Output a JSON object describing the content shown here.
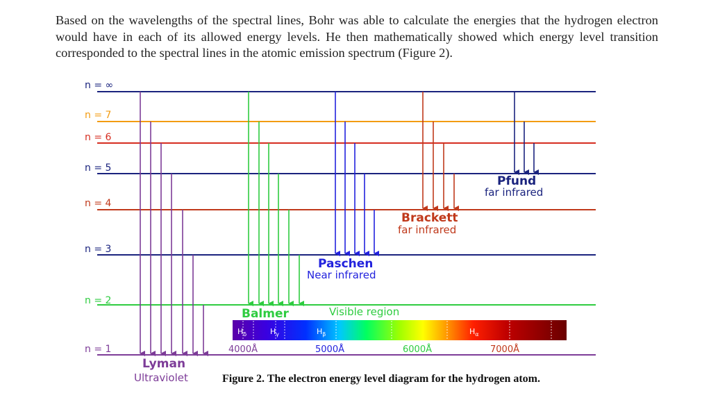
{
  "paragraph": "Based on the wavelengths of the spectral lines, Bohr was able to calculate the energies that the hydrogen electron would have in each of its allowed energy levels. He then mathematically showed which energy level transition corresponded to the spectral lines in the atomic emission spectrum (Figure 2).",
  "caption": "Figure 2. The electron energy level diagram for the hydrogen atom.",
  "levels": [
    {
      "label": "n = ∞",
      "color": "#1a237e"
    },
    {
      "label": "n = 7",
      "color": "#f39c12"
    },
    {
      "label": "n = 6",
      "color": "#d62d20"
    },
    {
      "label": "n = 5",
      "color": "#1a237e"
    },
    {
      "label": "n = 4",
      "color": "#c0391b"
    },
    {
      "label": "n = 3",
      "color": "#1a237e"
    },
    {
      "label": "n = 2",
      "color": "#2ecc40"
    },
    {
      "label": "n = 1",
      "color": "#7d3c98"
    }
  ],
  "series": [
    {
      "name": "Lyman",
      "sub": "Ultraviolet",
      "color": "#7d3c98"
    },
    {
      "name": "Balmer",
      "sub": "Visible region",
      "color": "#2ecc40"
    },
    {
      "name": "Paschen",
      "sub": "Near infrared",
      "color": "#2222dd"
    },
    {
      "name": "Brackett",
      "sub": "far infrared",
      "color": "#c0391b"
    },
    {
      "name": "Pfund",
      "sub": "far infrared",
      "color": "#1a237e"
    }
  ],
  "spectrum": {
    "ticks": [
      "4000Å",
      "5000Å",
      "6000Å",
      "7000Å"
    ],
    "lines": [
      {
        "sym": "H",
        "sub": "δ"
      },
      {
        "sym": "H",
        "sub": "γ"
      },
      {
        "sym": "H",
        "sub": "β"
      },
      {
        "sym": "H",
        "sub": "α"
      }
    ]
  }
}
